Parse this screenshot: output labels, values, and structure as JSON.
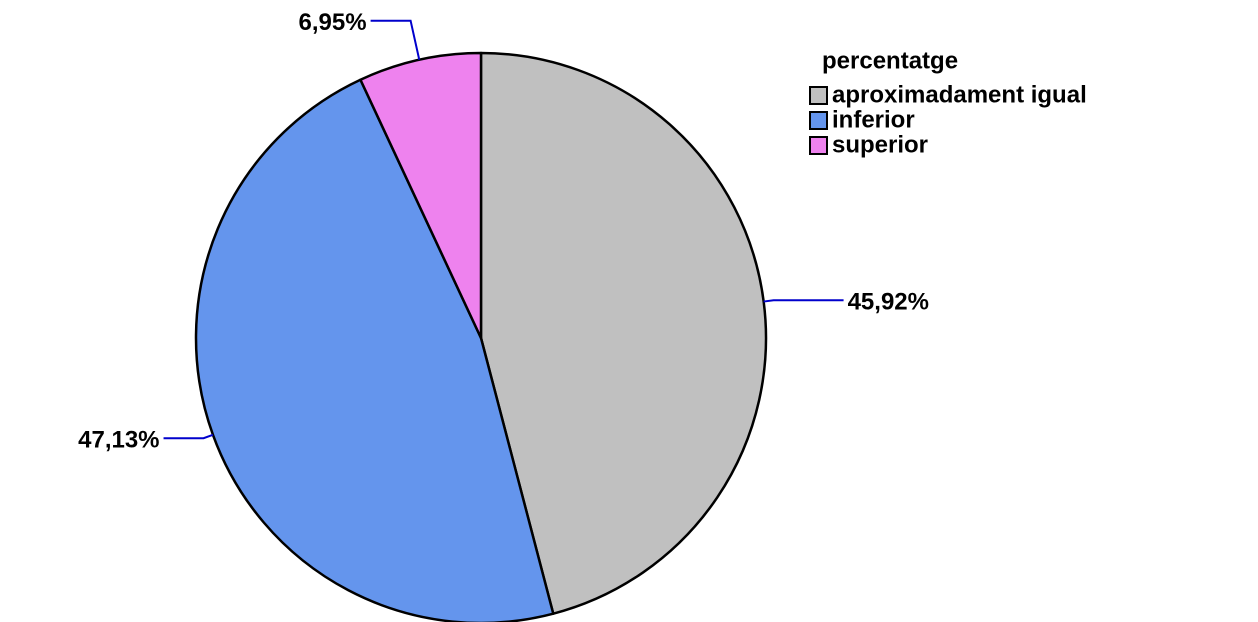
{
  "chart_data": {
    "type": "pie",
    "legend_title": "percentatge",
    "categories": [
      "aproximadament igual",
      "inferior",
      "superior"
    ],
    "values": [
      45.92,
      47.13,
      6.95
    ],
    "value_labels": [
      "45,92%",
      "47,13%",
      "6,95%"
    ],
    "colors": [
      "#c0c0c0",
      "#6495ed",
      "#ee82ee"
    ],
    "legend": "upper right"
  }
}
